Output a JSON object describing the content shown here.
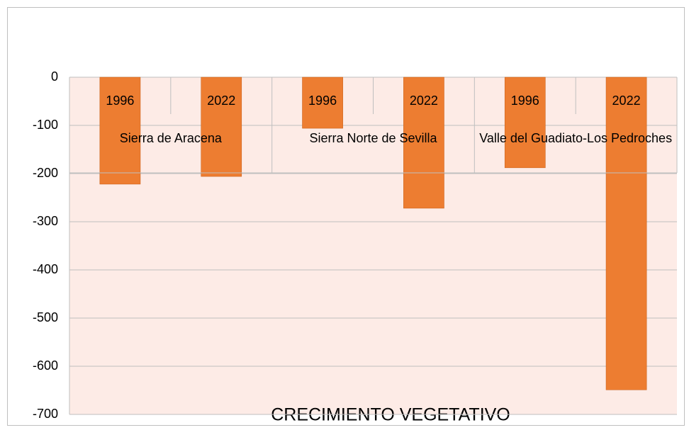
{
  "chart_data": {
    "type": "bar",
    "title": "CRECIMIENTO VEGETATIVO",
    "categories": [
      "1996",
      "2022",
      "1996",
      "2022",
      "1996",
      "2022"
    ],
    "groups": [
      "Sierra de Aracena",
      "Sierra Norte de Sevilla",
      "Valle del Guadiato-Los Pedroches"
    ],
    "values": [
      -222,
      -206,
      -106,
      -272,
      -188,
      -649
    ],
    "color": "#ed7d31",
    "ylim": [
      -700,
      0
    ],
    "yticks": [
      -700,
      -600,
      -500,
      -400,
      -300,
      -200,
      -100,
      0
    ],
    "grid": true
  }
}
